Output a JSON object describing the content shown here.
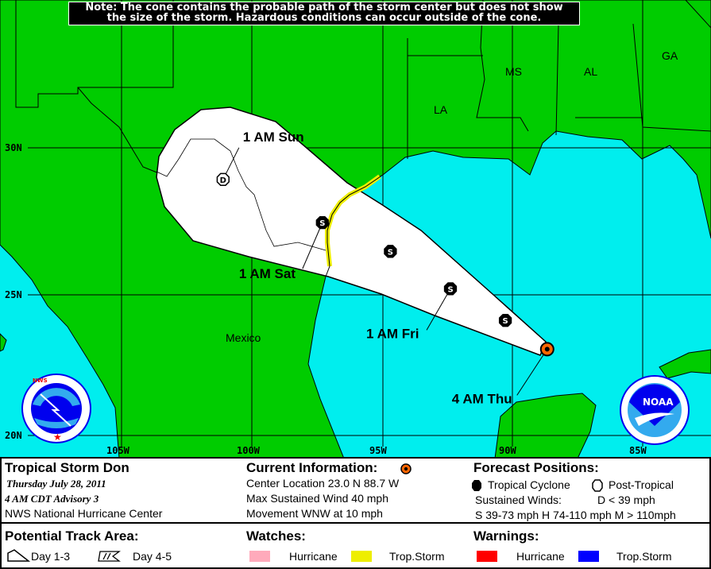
{
  "note": {
    "line1": "Note: The cone contains the probable path of the storm center but does not show",
    "line2": "the size of the storm. Hazardous conditions can occur outside of the cone."
  },
  "map": {
    "colors": {
      "land": "#00cc00",
      "water": "#00eeee",
      "cone": "#ffffff",
      "ts_watch": "#eeee00",
      "current": "#ff6600"
    },
    "lat_labels": [
      "30N",
      "25N",
      "20N"
    ],
    "lon_labels": [
      "105W",
      "100W",
      "95W",
      "90W",
      "85W"
    ],
    "region_labels": {
      "la": "LA",
      "ms": "MS",
      "al": "AL",
      "ga": "GA",
      "mexico": "Mexico"
    },
    "forecast_points": [
      {
        "time_label": "4 AM Thu",
        "lat": 23.0,
        "lon": -88.7,
        "type": "current",
        "symbol": ""
      },
      {
        "time_label": "",
        "lat": 24.0,
        "lon": -90.3,
        "type": "tropical",
        "symbol": "S"
      },
      {
        "time_label": "1 AM Fri",
        "lat": 25.1,
        "lon": -92.4,
        "type": "tropical",
        "symbol": "S"
      },
      {
        "time_label": "",
        "lat": 26.4,
        "lon": -94.7,
        "type": "tropical",
        "symbol": "S"
      },
      {
        "time_label": "1 AM Sat",
        "lat": 27.4,
        "lon": -97.3,
        "type": "tropical",
        "symbol": "S"
      },
      {
        "time_label": "1 AM Sun",
        "lat": 28.9,
        "lon": -101.1,
        "type": "post-tropical",
        "symbol": "D"
      }
    ],
    "logos": {
      "nws": "NATIONAL WEATHER SERVICE",
      "noaa": "NOAA"
    }
  },
  "legend": {
    "storm_name": "Tropical Storm Don",
    "date": "Thursday  July 28, 2011",
    "advisory": "4 AM CDT Advisory 3",
    "center": "NWS National Hurricane Center",
    "current_info": {
      "title": "Current Information:",
      "location": "Center Location 23.0 N  88.7 W",
      "wind": "Max Sustained Wind  40 mph",
      "movement": "Movement WNW at  10 mph"
    },
    "forecast_positions": {
      "title": "Forecast Positions:",
      "tropical": "Tropical Cyclone",
      "post_tropical": "Post-Tropical",
      "winds_label": "Sustained Winds:",
      "d": "D  < 39 mph",
      "shm": "S  39-73 mph  H  74-110 mph  M  > 110mph"
    },
    "track_area": {
      "title": "Potential Track Area:",
      "day13": "Day 1-3",
      "day45": "Day 4-5"
    },
    "watches": {
      "title": "Watches:",
      "hurricane": "Hurricane",
      "ts": "Trop.Storm",
      "hurricane_color": "#ffaabb",
      "ts_color": "#eeee00"
    },
    "warnings": {
      "title": "Warnings:",
      "hurricane": "Hurricane",
      "ts": "Trop.Storm",
      "hurricane_color": "#ff0000",
      "ts_color": "#0000ff"
    }
  }
}
